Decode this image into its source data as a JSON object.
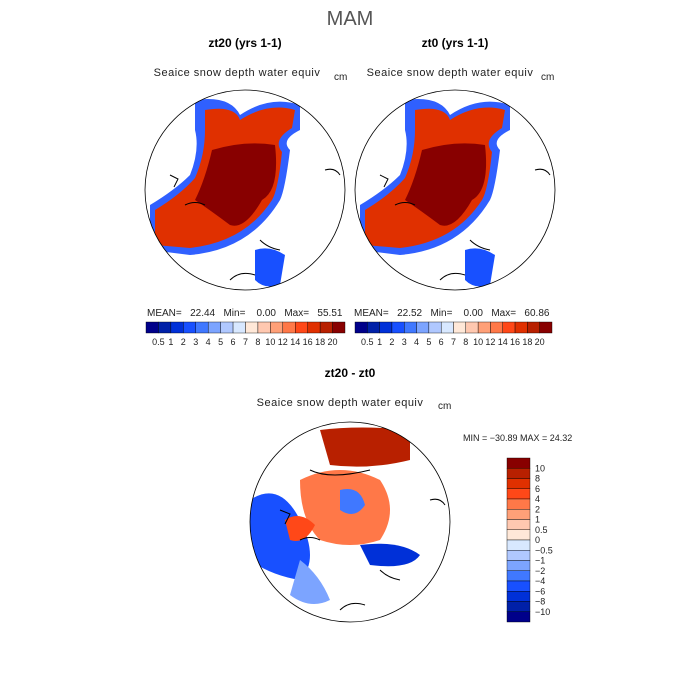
{
  "title": "MAM",
  "panels": [
    {
      "title": "zt20 (yrs 1-1)",
      "variable": "Seaice snow depth water equiv",
      "units": "cm",
      "stats": {
        "mean_label": "MEAN=",
        "mean": "22.44",
        "min_label": "Min=",
        "min": "0.00",
        "max_label": "Max=",
        "max": "55.51"
      }
    },
    {
      "title": "zt0 (yrs 1-1)",
      "variable": "Seaice snow depth water equiv",
      "units": "cm",
      "stats": {
        "mean_label": "MEAN=",
        "mean": "22.52",
        "min_label": "Min=",
        "min": "0.00",
        "max_label": "Max=",
        "max": "60.86"
      }
    },
    {
      "title": "zt20 - zt0",
      "variable": "Seaice snow depth water equiv",
      "units": "cm",
      "stats_text": "MIN = −30.89  MAX =  24.32"
    }
  ],
  "colorbar_abs": {
    "labels": [
      "0.5",
      "1",
      "2",
      "3",
      "4",
      "5",
      "6",
      "7",
      "8",
      "10",
      "12",
      "14",
      "16",
      "18",
      "20"
    ],
    "colors": [
      "#00008a",
      "#0020a8",
      "#0030d8",
      "#1850ff",
      "#4078ff",
      "#7ca4ff",
      "#b0c8ff",
      "#d8e8ff",
      "#ffe8d8",
      "#ffc8b0",
      "#ffa078",
      "#ff7848",
      "#ff4818",
      "#e03000",
      "#b82000",
      "#880000"
    ]
  },
  "colorbar_diff": {
    "labels": [
      "10",
      "8",
      "6",
      "4",
      "2",
      "1",
      "0.5",
      "0",
      "−0.5",
      "−1",
      "−2",
      "−4",
      "−6",
      "−8",
      "−10"
    ],
    "colors": [
      "#880000",
      "#b82000",
      "#e03000",
      "#ff4818",
      "#ff7848",
      "#ffa078",
      "#ffc8b0",
      "#ffe8d8",
      "#d8e8ff",
      "#b0c8ff",
      "#7ca4ff",
      "#4078ff",
      "#1850ff",
      "#0030d8",
      "#0020a8",
      "#00008a"
    ]
  }
}
